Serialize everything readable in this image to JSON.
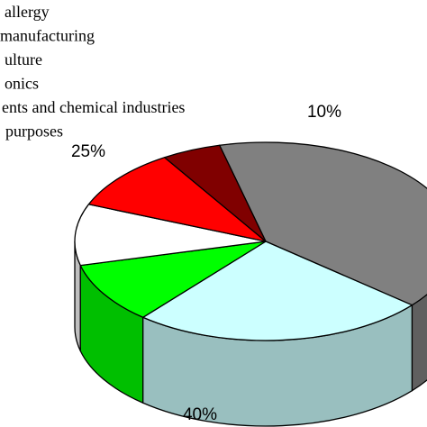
{
  "chart_data": {
    "type": "pie",
    "legend_position": "top-left",
    "legend": [
      "allergy",
      "manufacturing",
      "ulture",
      "onics",
      "ents and chemical industries",
      "purposes"
    ],
    "slices": [
      {
        "value": 40,
        "label": "40%",
        "color": "#808080"
      },
      {
        "value": 25,
        "label": "25%",
        "color": "#ccffff"
      },
      {
        "value": 10,
        "label": "10%",
        "color": "#00ff00"
      },
      {
        "value": 10,
        "label": "",
        "color": "#ffffff"
      },
      {
        "value": 10,
        "label": "",
        "color": "#ff0000"
      },
      {
        "value": 5,
        "label": "",
        "color": "#800000"
      }
    ]
  }
}
